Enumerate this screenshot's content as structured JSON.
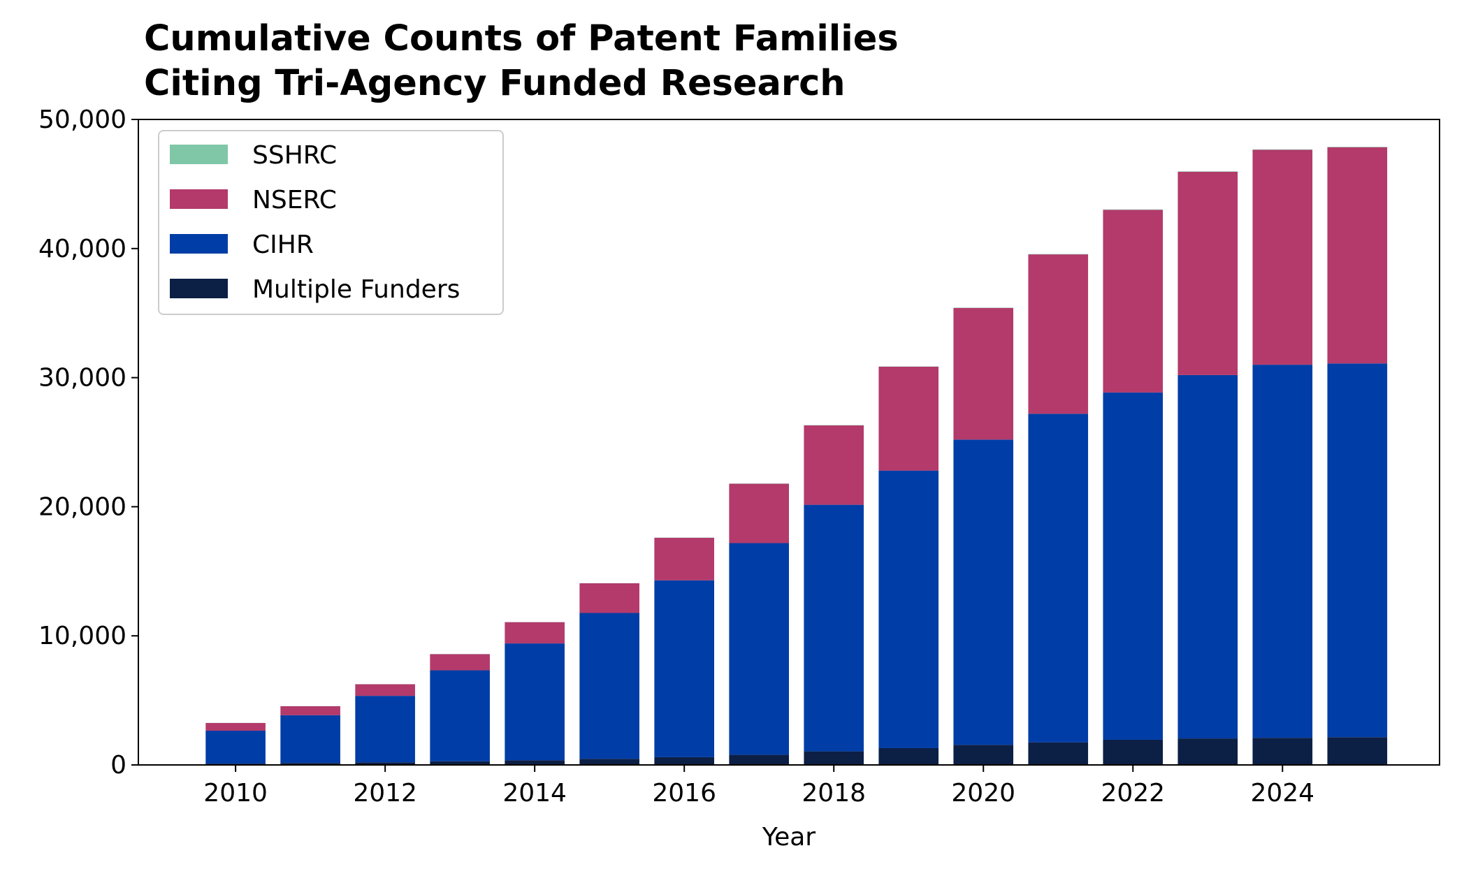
{
  "chart_data": {
    "type": "bar",
    "stacked": true,
    "title_lines": [
      "Cumulative Counts of Patent Families",
      "Citing Tri-Agency Funded Research"
    ],
    "xlabel": "Year",
    "ylabel": "",
    "x": [
      2010,
      2011,
      2012,
      2013,
      2014,
      2015,
      2016,
      2017,
      2018,
      2019,
      2020,
      2021,
      2022,
      2023,
      2024,
      2025
    ],
    "xticks": [
      2010,
      2012,
      2014,
      2016,
      2018,
      2020,
      2022,
      2024
    ],
    "xtick_labels": [
      "2010",
      "2012",
      "2014",
      "2016",
      "2018",
      "2020",
      "2022",
      "2024"
    ],
    "xlim": [
      2008.7,
      2026.1
    ],
    "yticks": [
      0,
      10000,
      20000,
      30000,
      40000,
      50000
    ],
    "ytick_labels": [
      "0",
      "10,000",
      "20,000",
      "30,000",
      "40,000",
      "50,000"
    ],
    "ylim": [
      0,
      50000
    ],
    "grid": false,
    "legend_position": "upper-left",
    "series": [
      {
        "name": "Multiple Funders",
        "color": "#0c1f45",
        "values": [
          100,
          150,
          200,
          280,
          360,
          470,
          600,
          780,
          1050,
          1300,
          1550,
          1750,
          1950,
          2050,
          2100,
          2150
        ]
      },
      {
        "name": "CIHR",
        "color": "#003da6",
        "values": [
          2550,
          3700,
          5150,
          7050,
          9050,
          11300,
          13700,
          16400,
          19100,
          21500,
          23650,
          25450,
          26900,
          28150,
          28900,
          28950
        ]
      },
      {
        "name": "NSERC",
        "color": "#b33a6b",
        "values": [
          600,
          700,
          900,
          1250,
          1650,
          2300,
          3300,
          4600,
          6150,
          8050,
          10200,
          12350,
          14150,
          15750,
          16650,
          16750
        ]
      },
      {
        "name": "SSHRC",
        "color": "#7fc7a6",
        "values": [
          5,
          5,
          5,
          10,
          10,
          10,
          15,
          15,
          20,
          20,
          25,
          25,
          30,
          30,
          30,
          30
        ]
      }
    ],
    "legend_order": [
      "SSHRC",
      "NSERC",
      "CIHR",
      "Multiple Funders"
    ]
  }
}
